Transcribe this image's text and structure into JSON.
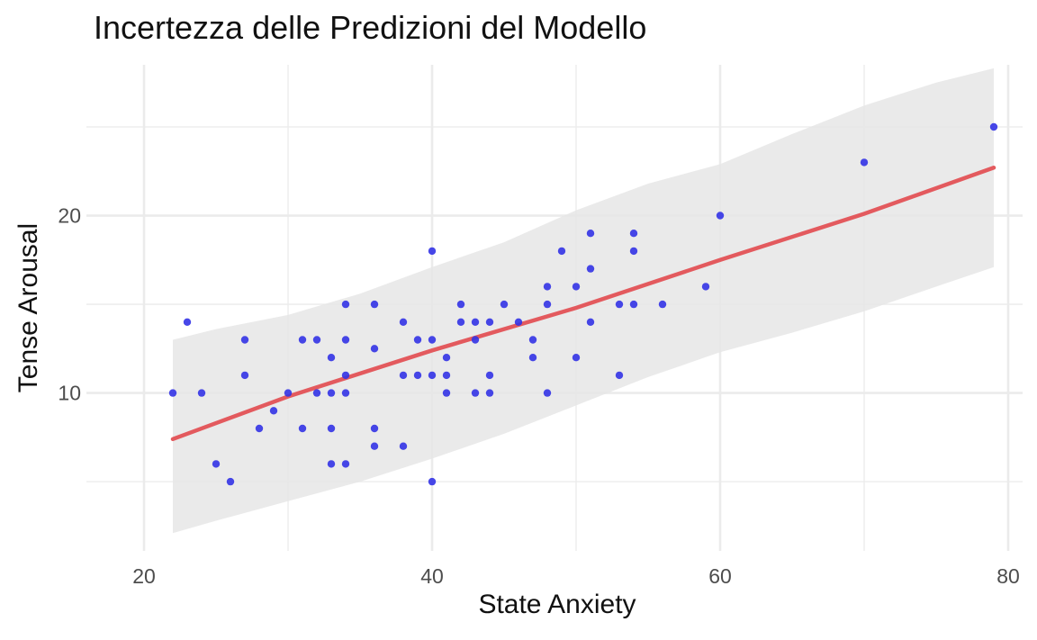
{
  "chart_data": {
    "type": "scatter",
    "title": "Incertezza delle Predizioni del Modello",
    "xlabel": "State Anxiety",
    "ylabel": "Tense Arousal",
    "xlim": [
      16,
      81
    ],
    "ylim": [
      1.1,
      28.5
    ],
    "x_ticks": [
      20,
      40,
      60,
      80
    ],
    "y_ticks": [
      10,
      20
    ],
    "x_minor_ticks": [
      30,
      50,
      70
    ],
    "y_minor_ticks": [
      5,
      15,
      25
    ],
    "grid": true,
    "colors": {
      "points": "#3333e6",
      "line": "#e35a5e",
      "band": "#e6e6e6",
      "grid": "#ebebeb"
    },
    "points": [
      [
        22,
        10
      ],
      [
        23,
        14
      ],
      [
        24,
        10
      ],
      [
        25,
        6
      ],
      [
        26,
        5
      ],
      [
        27,
        13
      ],
      [
        27,
        11
      ],
      [
        28,
        8
      ],
      [
        29,
        9
      ],
      [
        30,
        10
      ],
      [
        31,
        13
      ],
      [
        31,
        8
      ],
      [
        32,
        13
      ],
      [
        32,
        10
      ],
      [
        33,
        12
      ],
      [
        33,
        10
      ],
      [
        33,
        8
      ],
      [
        33,
        6
      ],
      [
        34,
        15
      ],
      [
        34,
        13
      ],
      [
        34,
        11
      ],
      [
        34,
        10
      ],
      [
        34,
        6
      ],
      [
        36,
        15
      ],
      [
        36,
        12.5
      ],
      [
        36,
        8
      ],
      [
        36,
        7
      ],
      [
        38,
        14
      ],
      [
        38,
        11
      ],
      [
        38,
        7
      ],
      [
        39,
        13
      ],
      [
        39,
        11
      ],
      [
        40,
        18
      ],
      [
        40,
        13
      ],
      [
        40,
        11
      ],
      [
        40,
        5
      ],
      [
        41,
        12
      ],
      [
        41,
        11
      ],
      [
        41,
        10
      ],
      [
        42,
        15
      ],
      [
        42,
        14
      ],
      [
        43,
        14
      ],
      [
        43,
        13
      ],
      [
        43,
        10
      ],
      [
        44,
        14
      ],
      [
        44,
        11
      ],
      [
        44,
        10
      ],
      [
        45,
        15
      ],
      [
        46,
        14
      ],
      [
        47,
        13
      ],
      [
        47,
        12
      ],
      [
        48,
        16
      ],
      [
        48,
        15
      ],
      [
        48,
        10
      ],
      [
        49,
        18
      ],
      [
        50,
        16
      ],
      [
        50,
        12
      ],
      [
        51,
        19
      ],
      [
        51,
        17
      ],
      [
        51,
        14
      ],
      [
        53,
        15
      ],
      [
        53,
        11
      ],
      [
        54,
        19
      ],
      [
        54,
        18
      ],
      [
        54,
        15
      ],
      [
        56,
        15
      ],
      [
        59,
        16
      ],
      [
        60,
        20
      ],
      [
        70,
        23
      ],
      [
        79,
        25
      ]
    ],
    "fit_line": [
      [
        22,
        7.4
      ],
      [
        30,
        9.8
      ],
      [
        40,
        12.4
      ],
      [
        50,
        14.8
      ],
      [
        60,
        17.5
      ],
      [
        70,
        20.1
      ],
      [
        79,
        22.7
      ]
    ],
    "prediction_band": [
      [
        22,
        2.1,
        13.0
      ],
      [
        25,
        2.8,
        13.6
      ],
      [
        30,
        3.9,
        14.4
      ],
      [
        35,
        5.0,
        15.6
      ],
      [
        40,
        6.3,
        17.1
      ],
      [
        45,
        7.7,
        18.5
      ],
      [
        50,
        9.3,
        20.3
      ],
      [
        55,
        10.9,
        21.8
      ],
      [
        60,
        12.3,
        22.9
      ],
      [
        65,
        13.4,
        24.6
      ],
      [
        70,
        14.6,
        26.2
      ],
      [
        75,
        16.0,
        27.5
      ],
      [
        79,
        17.1,
        28.3
      ]
    ]
  }
}
